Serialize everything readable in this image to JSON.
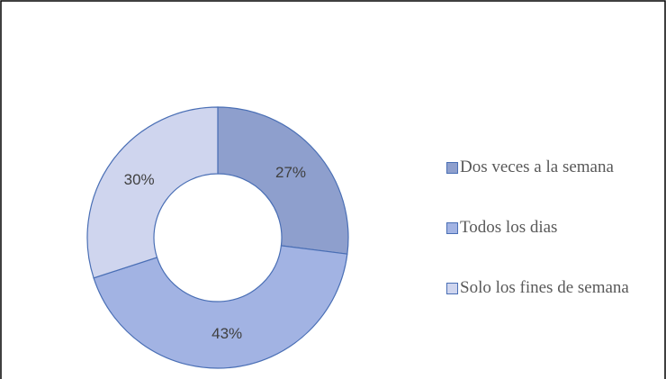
{
  "chart_data": {
    "type": "donut",
    "categories": [
      "Dos veces a la semana",
      "Todos los dias",
      "Solo los fines de semana"
    ],
    "values": [
      27,
      43,
      30
    ],
    "value_labels": [
      "27%",
      "43%",
      "30%"
    ],
    "colors": [
      "#8e9fcd",
      "#a2b3e3",
      "#cfd5ee"
    ],
    "legend": "right"
  }
}
